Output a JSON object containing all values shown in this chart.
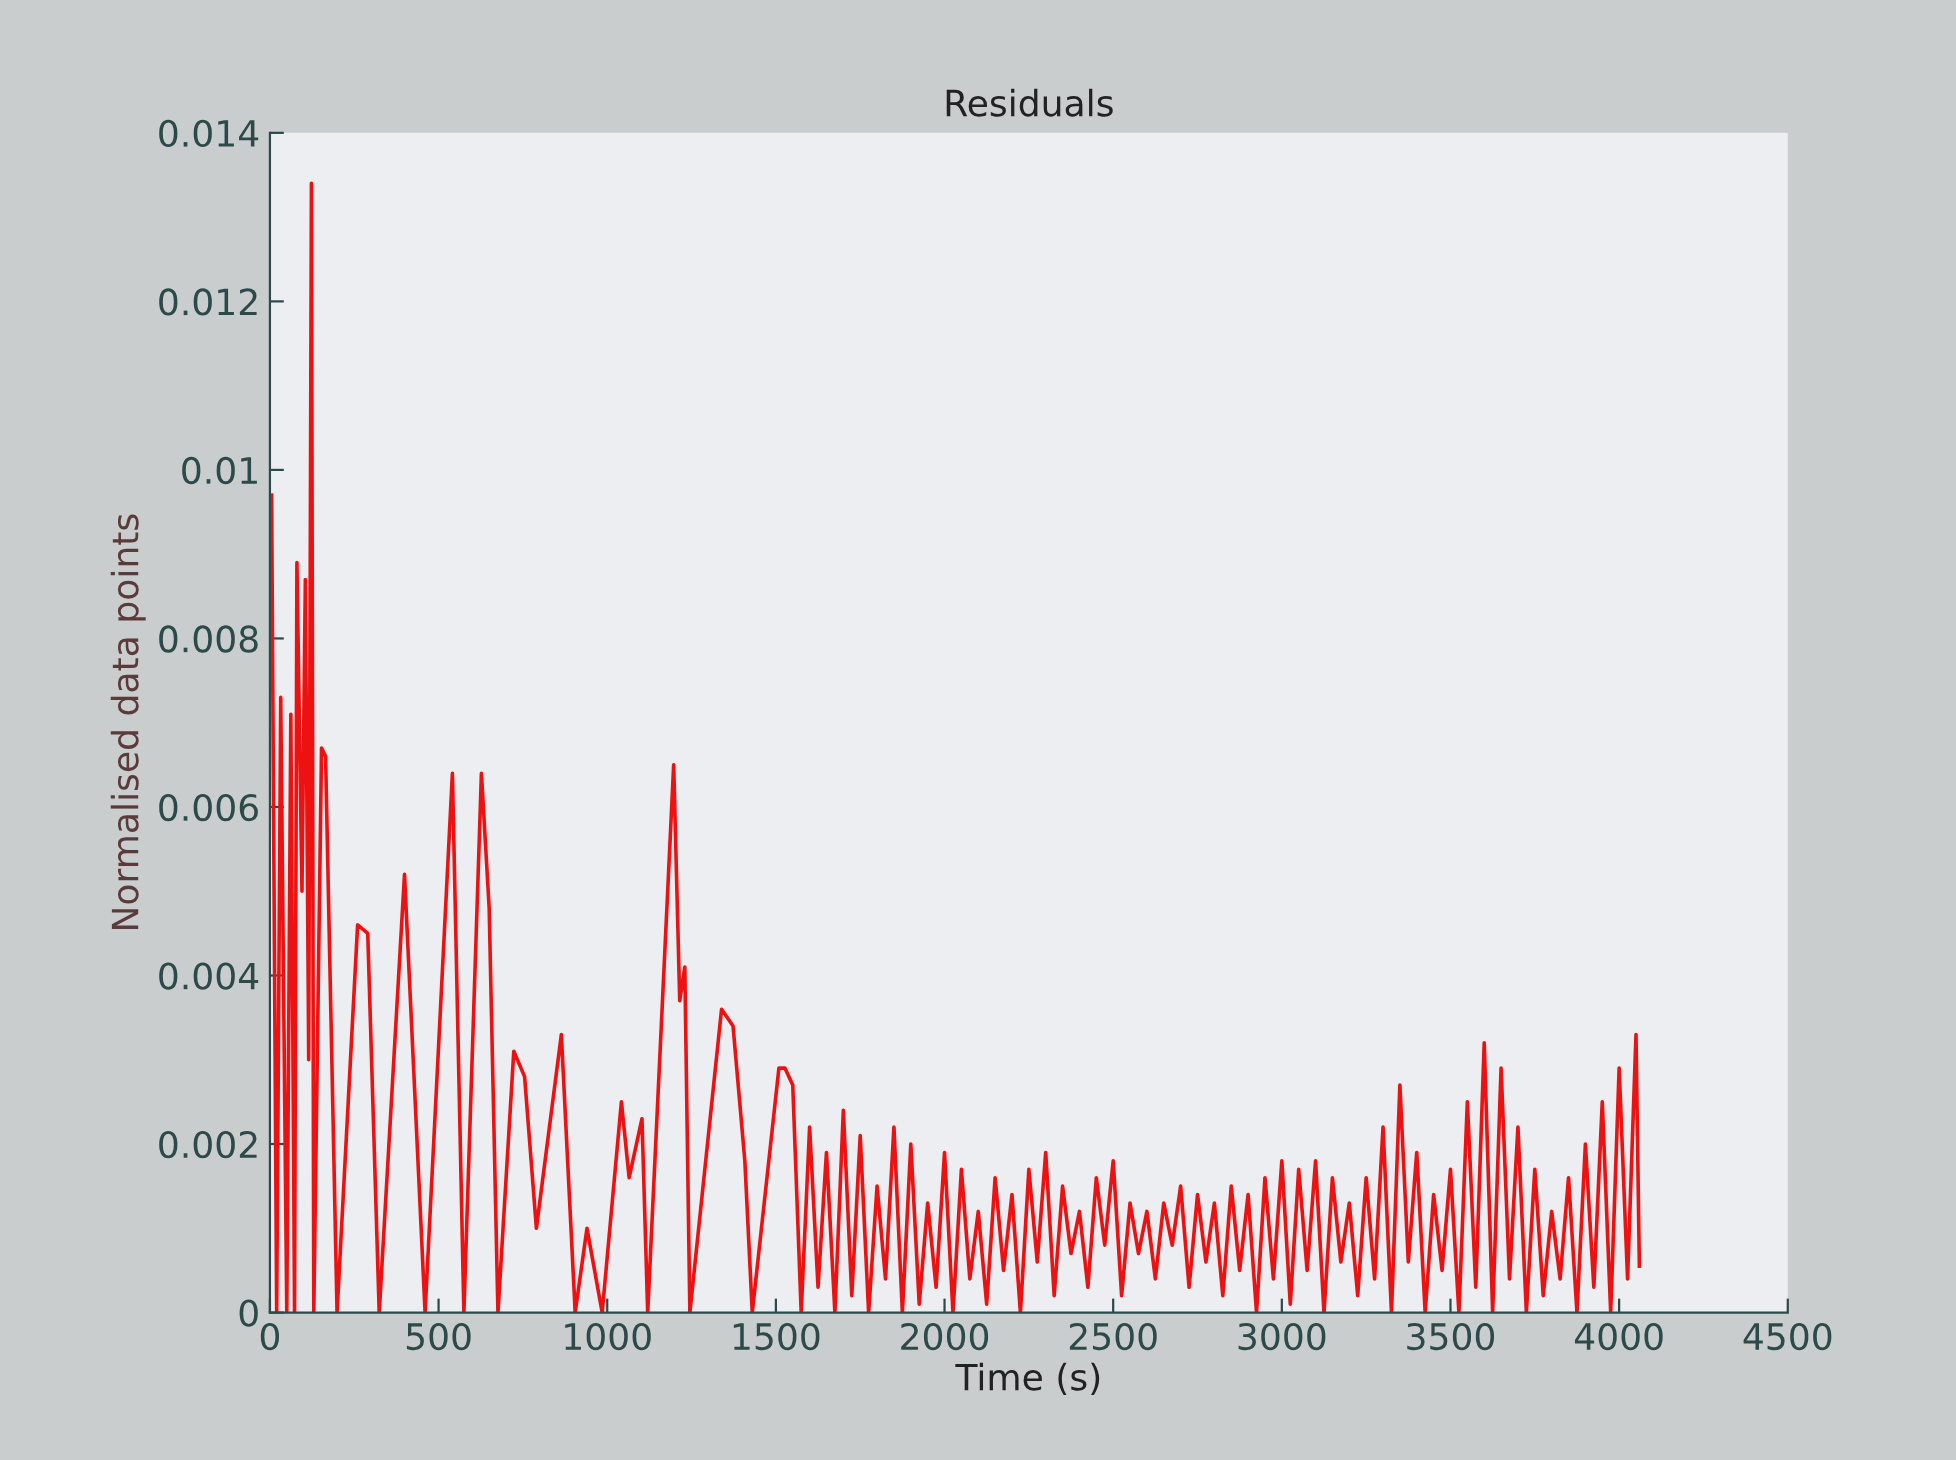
{
  "chart_data": {
    "type": "line",
    "title": "Residuals",
    "xlabel": "Time (s)",
    "ylabel": "Normalised data points",
    "xlim": [
      0,
      4500
    ],
    "ylim": [
      0,
      0.014
    ],
    "xticks": [
      0,
      500,
      1000,
      1500,
      2000,
      2500,
      3000,
      3500,
      4000,
      4500
    ],
    "yticks": [
      0,
      0.002,
      0.004,
      0.006,
      0.008,
      0.01,
      0.012,
      0.014
    ],
    "grid": false,
    "legend": false,
    "marker": "none",
    "line_style": "solid",
    "series": [
      {
        "color": "#ee1111",
        "x": [
          5,
          20,
          32,
          50,
          62,
          73,
          80,
          95,
          105,
          115,
          123,
          130,
          153,
          165,
          199,
          260,
          290,
          324,
          399,
          460,
          541,
          575,
          627,
          650,
          676,
          723,
          755,
          790,
          864,
          905,
          940,
          985,
          1042,
          1065,
          1103,
          1120,
          1197,
          1215,
          1230,
          1245,
          1339,
          1373,
          1408,
          1430,
          1509,
          1527,
          1550,
          1575,
          1600,
          1625,
          1650,
          1675,
          1700,
          1725,
          1750,
          1775,
          1800,
          1825,
          1850,
          1875,
          1900,
          1925,
          1950,
          1975,
          2000,
          2025,
          2050,
          2075,
          2100,
          2125,
          2150,
          2175,
          2200,
          2225,
          2250,
          2275,
          2300,
          2325,
          2350,
          2375,
          2400,
          2425,
          2450,
          2475,
          2500,
          2525,
          2550,
          2575,
          2600,
          2625,
          2650,
          2675,
          2700,
          2725,
          2750,
          2775,
          2800,
          2825,
          2850,
          2875,
          2900,
          2925,
          2950,
          2975,
          3000,
          3025,
          3050,
          3075,
          3100,
          3125,
          3150,
          3175,
          3200,
          3225,
          3250,
          3275,
          3300,
          3325,
          3350,
          3375,
          3400,
          3425,
          3450,
          3475,
          3500,
          3525,
          3550,
          3575,
          3600,
          3625,
          3650,
          3675,
          3700,
          3725,
          3750,
          3775,
          3800,
          3825,
          3850,
          3875,
          3900,
          3925,
          3950,
          3975,
          4000,
          4025,
          4050,
          4060
        ],
        "values": [
          0.0097,
          0,
          0.0073,
          0,
          0.0071,
          0,
          0.0089,
          0.005,
          0.0087,
          0.003,
          0.0134,
          0,
          0.0067,
          0.0066,
          0,
          0.0046,
          0.0045,
          0,
          0.0052,
          0,
          0.0064,
          0,
          0.0064,
          0.0048,
          0,
          0.0031,
          0.0028,
          0.001,
          0.0033,
          0,
          0.001,
          0,
          0.0025,
          0.0016,
          0.0023,
          0,
          0.0065,
          0.0037,
          0.0041,
          0,
          0.0036,
          0.0034,
          0.0018,
          0,
          0.0029,
          0.0029,
          0.0027,
          0,
          0.0022,
          0.0003,
          0.0019,
          0,
          0.0024,
          0.0002,
          0.0021,
          0,
          0.0015,
          0.0004,
          0.0022,
          0,
          0.002,
          0.0001,
          0.0013,
          0.0003,
          0.0019,
          0,
          0.0017,
          0.0004,
          0.0012,
          0.0001,
          0.0016,
          0.0005,
          0.0014,
          0,
          0.0017,
          0.0006,
          0.0019,
          0.0002,
          0.0015,
          0.0007,
          0.0012,
          0.0003,
          0.0016,
          0.0008,
          0.0018,
          0.0002,
          0.0013,
          0.0007,
          0.0012,
          0.0004,
          0.0013,
          0.0008,
          0.0015,
          0.0003,
          0.0014,
          0.0006,
          0.0013,
          0.0002,
          0.0015,
          0.0005,
          0.0014,
          0,
          0.0016,
          0.0004,
          0.0018,
          0.0001,
          0.0017,
          0.0005,
          0.0018,
          0,
          0.0016,
          0.0006,
          0.0013,
          0.0002,
          0.0016,
          0.0004,
          0.0022,
          0,
          0.0027,
          0.0006,
          0.0019,
          0,
          0.0014,
          0.0005,
          0.0017,
          0,
          0.0025,
          0.0003,
          0.0032,
          0,
          0.0029,
          0.0004,
          0.0022,
          0,
          0.0017,
          0.0002,
          0.0012,
          0.0004,
          0.0016,
          0,
          0.002,
          0.0003,
          0.0025,
          0,
          0.0029,
          0.0004,
          0.0033,
          0.00055
        ]
      }
    ]
  }
}
